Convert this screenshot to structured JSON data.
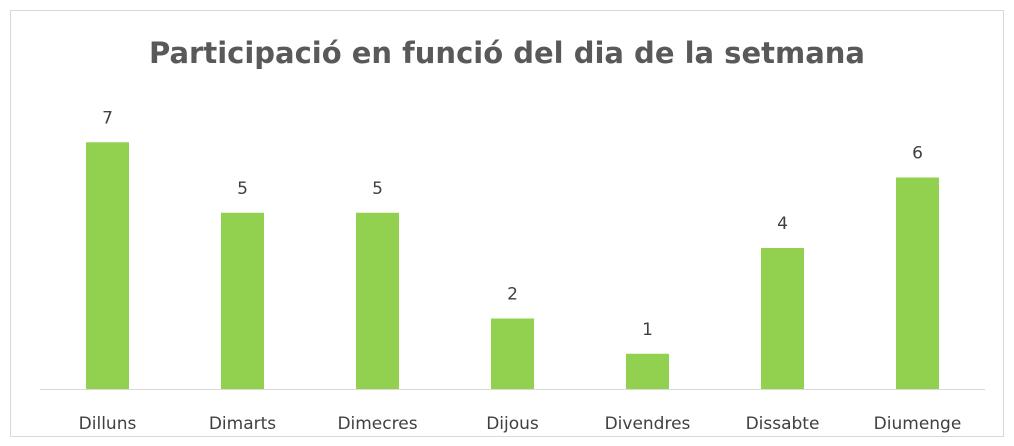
{
  "chart_data": {
    "type": "bar",
    "title": "Participació en funció del dia de la setmana",
    "categories": [
      "Dilluns",
      "Dimarts",
      "Dimecres",
      "Dijous",
      "Divendres",
      "Dissabte",
      "Diumenge"
    ],
    "values": [
      7,
      5,
      5,
      2,
      1,
      4,
      6
    ],
    "color": "#92d050",
    "ylim": [
      0,
      8
    ]
  }
}
